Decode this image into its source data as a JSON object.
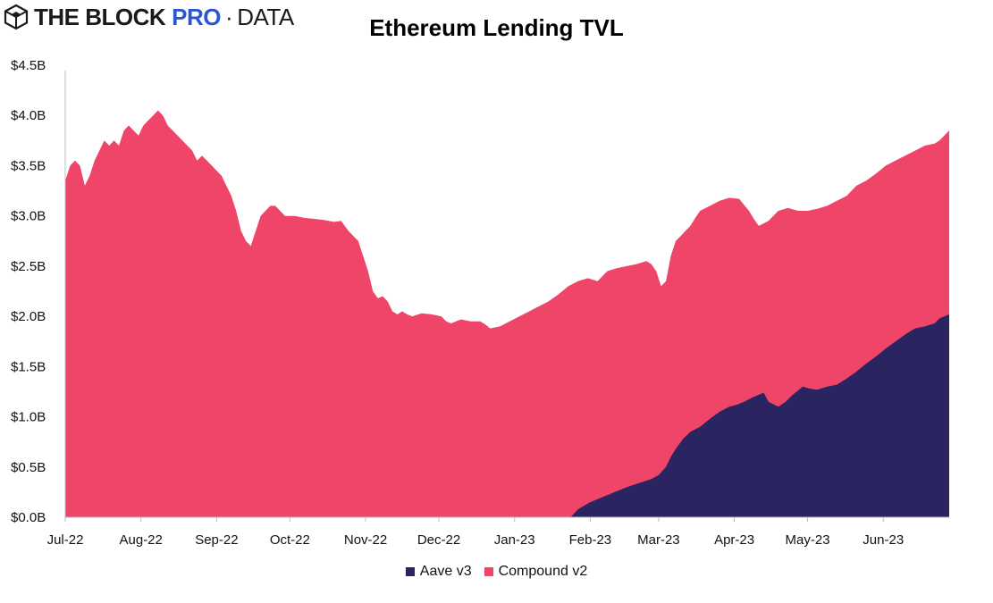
{
  "header": {
    "brand_main": "THE BLOCK",
    "brand_pro": "PRO",
    "brand_sep": "·",
    "brand_data": "DATA",
    "logo_icon": "hexagon-cube-icon"
  },
  "chart_data": {
    "type": "area",
    "stacked": true,
    "title": "Ethereum Lending TVL",
    "xlabel": "",
    "ylabel": "",
    "ylim": [
      0,
      4.5
    ],
    "y_ticks": [
      {
        "value": 0.0,
        "label": "$0.0B"
      },
      {
        "value": 0.5,
        "label": "$0.5B"
      },
      {
        "value": 1.0,
        "label": "$1.0B"
      },
      {
        "value": 1.5,
        "label": "$1.5B"
      },
      {
        "value": 2.0,
        "label": "$2.0B"
      },
      {
        "value": 2.5,
        "label": "$2.5B"
      },
      {
        "value": 3.0,
        "label": "$3.0B"
      },
      {
        "value": 3.5,
        "label": "$3.5B"
      },
      {
        "value": 4.0,
        "label": "$4.0B"
      },
      {
        "value": 4.5,
        "label": "$4.5B"
      }
    ],
    "xlim": [
      0,
      362
    ],
    "x_ticks": [
      {
        "value": 0,
        "label": "Jul-22"
      },
      {
        "value": 31,
        "label": "Aug-22"
      },
      {
        "value": 62,
        "label": "Sep-22"
      },
      {
        "value": 92,
        "label": "Oct-22"
      },
      {
        "value": 123,
        "label": "Nov-22"
      },
      {
        "value": 153,
        "label": "Dec-22"
      },
      {
        "value": 184,
        "label": "Jan-23"
      },
      {
        "value": 215,
        "label": "Feb-23"
      },
      {
        "value": 243,
        "label": "Mar-23"
      },
      {
        "value": 274,
        "label": "Apr-23"
      },
      {
        "value": 304,
        "label": "May-23"
      },
      {
        "value": 335,
        "label": "Jun-23"
      }
    ],
    "x_unit": "days since 2022-07-01",
    "legend_position": "bottom",
    "series": [
      {
        "name": "Aave v3",
        "color": "#2a2460",
        "points": [
          [
            0,
            0
          ],
          [
            207,
            0
          ],
          [
            210,
            0.08
          ],
          [
            215,
            0.15
          ],
          [
            220,
            0.2
          ],
          [
            225,
            0.25
          ],
          [
            230,
            0.3
          ],
          [
            235,
            0.34
          ],
          [
            240,
            0.38
          ],
          [
            243,
            0.42
          ],
          [
            246,
            0.5
          ],
          [
            248,
            0.6
          ],
          [
            250,
            0.68
          ],
          [
            253,
            0.78
          ],
          [
            256,
            0.85
          ],
          [
            260,
            0.9
          ],
          [
            264,
            0.98
          ],
          [
            268,
            1.05
          ],
          [
            272,
            1.1
          ],
          [
            275,
            1.12
          ],
          [
            278,
            1.15
          ],
          [
            282,
            1.2
          ],
          [
            286,
            1.24
          ],
          [
            288,
            1.15
          ],
          [
            292,
            1.1
          ],
          [
            295,
            1.15
          ],
          [
            298,
            1.22
          ],
          [
            302,
            1.3
          ],
          [
            305,
            1.28
          ],
          [
            308,
            1.27
          ],
          [
            312,
            1.3
          ],
          [
            316,
            1.32
          ],
          [
            320,
            1.38
          ],
          [
            324,
            1.45
          ],
          [
            328,
            1.53
          ],
          [
            332,
            1.6
          ],
          [
            336,
            1.68
          ],
          [
            340,
            1.75
          ],
          [
            344,
            1.82
          ],
          [
            348,
            1.88
          ],
          [
            352,
            1.9
          ],
          [
            356,
            1.93
          ],
          [
            358,
            1.98
          ],
          [
            362,
            2.02
          ]
        ]
      },
      {
        "name": "Compound v2",
        "color": "#ef4569",
        "total_points": [
          [
            0,
            3.35
          ],
          [
            2,
            3.5
          ],
          [
            4,
            3.55
          ],
          [
            6,
            3.5
          ],
          [
            8,
            3.3
          ],
          [
            10,
            3.4
          ],
          [
            12,
            3.55
          ],
          [
            14,
            3.65
          ],
          [
            16,
            3.75
          ],
          [
            18,
            3.7
          ],
          [
            20,
            3.75
          ],
          [
            22,
            3.7
          ],
          [
            24,
            3.85
          ],
          [
            26,
            3.9
          ],
          [
            28,
            3.85
          ],
          [
            30,
            3.8
          ],
          [
            32,
            3.9
          ],
          [
            34,
            3.95
          ],
          [
            36,
            4.0
          ],
          [
            38,
            4.05
          ],
          [
            40,
            4.0
          ],
          [
            42,
            3.9
          ],
          [
            44,
            3.85
          ],
          [
            46,
            3.8
          ],
          [
            48,
            3.75
          ],
          [
            50,
            3.7
          ],
          [
            52,
            3.65
          ],
          [
            54,
            3.55
          ],
          [
            56,
            3.6
          ],
          [
            58,
            3.55
          ],
          [
            60,
            3.5
          ],
          [
            62,
            3.45
          ],
          [
            64,
            3.4
          ],
          [
            66,
            3.3
          ],
          [
            68,
            3.2
          ],
          [
            70,
            3.05
          ],
          [
            72,
            2.85
          ],
          [
            74,
            2.75
          ],
          [
            76,
            2.7
          ],
          [
            78,
            2.85
          ],
          [
            80,
            3.0
          ],
          [
            82,
            3.05
          ],
          [
            84,
            3.1
          ],
          [
            86,
            3.1
          ],
          [
            88,
            3.05
          ],
          [
            90,
            3.0
          ],
          [
            94,
            3.0
          ],
          [
            98,
            2.98
          ],
          [
            102,
            2.97
          ],
          [
            106,
            2.96
          ],
          [
            110,
            2.94
          ],
          [
            113,
            2.95
          ],
          [
            116,
            2.85
          ],
          [
            118,
            2.8
          ],
          [
            120,
            2.75
          ],
          [
            122,
            2.6
          ],
          [
            124,
            2.45
          ],
          [
            126,
            2.25
          ],
          [
            128,
            2.18
          ],
          [
            130,
            2.2
          ],
          [
            132,
            2.15
          ],
          [
            134,
            2.05
          ],
          [
            136,
            2.02
          ],
          [
            138,
            2.05
          ],
          [
            140,
            2.02
          ],
          [
            142,
            2.0
          ],
          [
            146,
            2.03
          ],
          [
            150,
            2.02
          ],
          [
            154,
            2.0
          ],
          [
            156,
            1.95
          ],
          [
            158,
            1.93
          ],
          [
            162,
            1.97
          ],
          [
            166,
            1.95
          ],
          [
            170,
            1.95
          ],
          [
            172,
            1.92
          ],
          [
            174,
            1.88
          ],
          [
            178,
            1.9
          ],
          [
            182,
            1.95
          ],
          [
            186,
            2.0
          ],
          [
            190,
            2.05
          ],
          [
            194,
            2.1
          ],
          [
            198,
            2.15
          ],
          [
            202,
            2.22
          ],
          [
            206,
            2.3
          ],
          [
            210,
            2.35
          ],
          [
            214,
            2.38
          ],
          [
            218,
            2.35
          ],
          [
            220,
            2.4
          ],
          [
            222,
            2.45
          ],
          [
            226,
            2.48
          ],
          [
            230,
            2.5
          ],
          [
            234,
            2.52
          ],
          [
            238,
            2.55
          ],
          [
            240,
            2.52
          ],
          [
            242,
            2.45
          ],
          [
            244,
            2.3
          ],
          [
            246,
            2.35
          ],
          [
            248,
            2.6
          ],
          [
            250,
            2.75
          ],
          [
            252,
            2.8
          ],
          [
            254,
            2.85
          ],
          [
            256,
            2.9
          ],
          [
            258,
            2.98
          ],
          [
            260,
            3.05
          ],
          [
            264,
            3.1
          ],
          [
            268,
            3.15
          ],
          [
            272,
            3.18
          ],
          [
            276,
            3.17
          ],
          [
            280,
            3.05
          ],
          [
            282,
            2.97
          ],
          [
            284,
            2.9
          ],
          [
            288,
            2.95
          ],
          [
            292,
            3.05
          ],
          [
            296,
            3.08
          ],
          [
            300,
            3.05
          ],
          [
            304,
            3.05
          ],
          [
            308,
            3.07
          ],
          [
            312,
            3.1
          ],
          [
            316,
            3.15
          ],
          [
            320,
            3.2
          ],
          [
            324,
            3.3
          ],
          [
            328,
            3.35
          ],
          [
            332,
            3.42
          ],
          [
            336,
            3.5
          ],
          [
            340,
            3.55
          ],
          [
            344,
            3.6
          ],
          [
            348,
            3.65
          ],
          [
            352,
            3.7
          ],
          [
            356,
            3.72
          ],
          [
            358,
            3.75
          ],
          [
            360,
            3.8
          ],
          [
            362,
            3.85
          ]
        ]
      }
    ]
  }
}
